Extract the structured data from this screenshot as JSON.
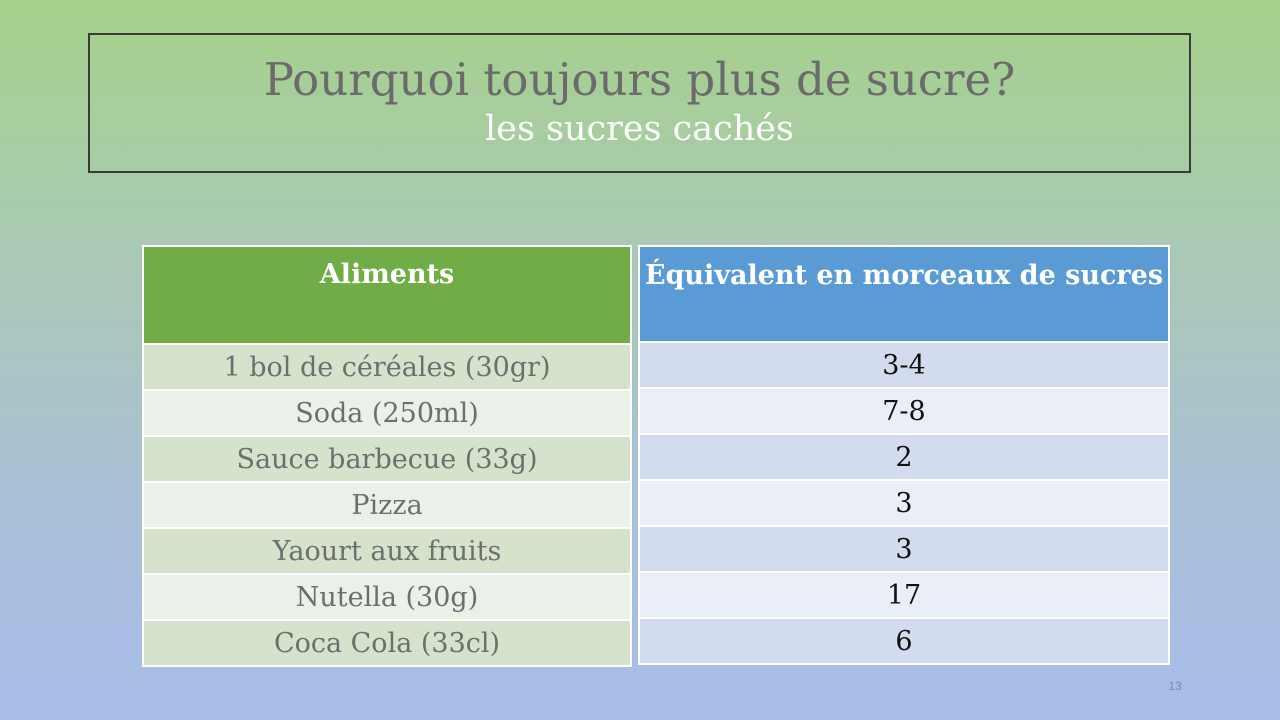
{
  "slide": {
    "title": "Pourquoi toujours plus de sucre?",
    "subtitle": "les sucres cachés",
    "page_number": "13"
  },
  "table": {
    "headers": [
      "Aliments",
      "Équivalent en morceaux de sucres"
    ],
    "rows": [
      [
        "1 bol de céréales (30gr)",
        "3-4"
      ],
      [
        "Soda (250ml)",
        "7-8"
      ],
      [
        "Sauce barbecue (33g)",
        "2"
      ],
      [
        "Pizza",
        "3"
      ],
      [
        "Yaourt aux fruits",
        "3"
      ],
      [
        "Nutella (30g)",
        "17"
      ],
      [
        "Coca Cola (33cl)",
        "6"
      ]
    ]
  },
  "colors": {
    "header_left": "#70ad47",
    "header_right": "#5b9bd5",
    "title_text": "#6b6b6b",
    "subtitle_text": "#ffffff"
  }
}
